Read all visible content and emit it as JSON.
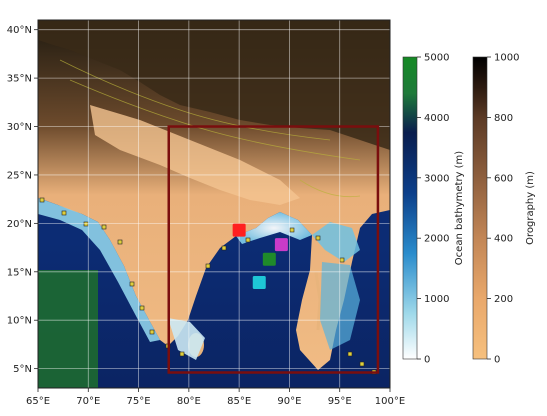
{
  "map": {
    "lon_range": [
      65,
      100
    ],
    "lat_range": [
      3,
      41
    ],
    "lon_ticks": [
      {
        "value": 65,
        "label": "65°E"
      },
      {
        "value": 70,
        "label": "70°E"
      },
      {
        "value": 75,
        "label": "75°E"
      },
      {
        "value": 80,
        "label": "80°E"
      },
      {
        "value": 85,
        "label": "85°E"
      },
      {
        "value": 90,
        "label": "90°E"
      },
      {
        "value": 95,
        "label": "95°E"
      },
      {
        "value": 100,
        "label": "100°E"
      }
    ],
    "lat_ticks": [
      {
        "value": 5,
        "label": "5°N"
      },
      {
        "value": 10,
        "label": "10°N"
      },
      {
        "value": 15,
        "label": "15°N"
      },
      {
        "value": 20,
        "label": "20°N"
      },
      {
        "value": 25,
        "label": "25°N"
      },
      {
        "value": 30,
        "label": "30°N"
      },
      {
        "value": 35,
        "label": "35°N"
      },
      {
        "value": 40,
        "label": "40°N"
      }
    ],
    "domain_box": {
      "lon_min": 78,
      "lon_max": 98.8,
      "lat_min": 4.6,
      "lat_max": 30,
      "color": "#7a0e0e"
    },
    "markers": [
      {
        "lon": 85.0,
        "lat": 19.3,
        "color": "#ff1f1f"
      },
      {
        "lon": 89.2,
        "lat": 17.8,
        "color": "#c93bc9"
      },
      {
        "lon": 88.0,
        "lat": 16.3,
        "color": "#1f8a2a"
      },
      {
        "lon": 87.0,
        "lat": 13.9,
        "color": "#1ec6d6"
      }
    ]
  },
  "colorbars": {
    "bathymetry": {
      "title": "Ocean bathymetry (m)",
      "ticks": [
        "0",
        "1000",
        "2000",
        "3000",
        "4000",
        "5000"
      ],
      "range": [
        0,
        5000
      ],
      "colors": [
        "#ffffff",
        "#9fd9ea",
        "#2a8ccc",
        "#0c3f8a",
        "#0a1d4e",
        "#1f7a3a",
        "#158a25"
      ]
    },
    "orography": {
      "title": "Orography (m)",
      "ticks": [
        "0",
        "200",
        "400",
        "600",
        "800",
        "1000"
      ],
      "range": [
        0,
        1000
      ],
      "colors": [
        "#f6c07e",
        "#e9a86b",
        "#c28656",
        "#8e5f3e",
        "#5b3a25",
        "#2c1a10",
        "#000000"
      ]
    }
  }
}
